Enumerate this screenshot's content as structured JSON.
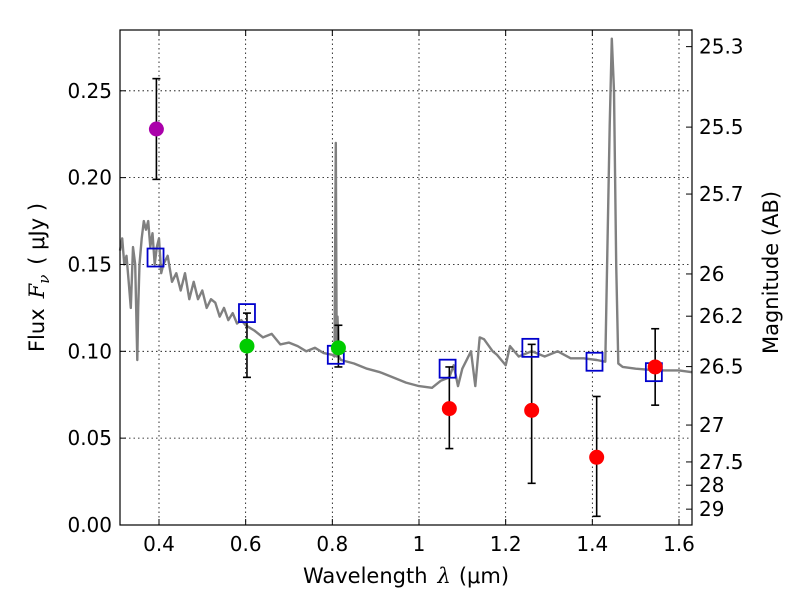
{
  "chart_data": {
    "type": "scatter",
    "xlabel": {
      "prefix": "Wavelength",
      "symbol": "λ",
      "unit": "(μm)"
    },
    "ylabel": {
      "prefix": "Flux",
      "symbol": "F",
      "subscript": "ν",
      "unit": "( μJy )"
    },
    "y2label": "Magnitude (AB)",
    "xlim": [
      0.31,
      1.63
    ],
    "ylim": [
      0.0,
      0.285
    ],
    "xticks": [
      0.4,
      0.6,
      0.8,
      1.0,
      1.2,
      1.4,
      1.6
    ],
    "xtick_labels": [
      "0.4",
      "0.6",
      "0.8",
      "1",
      "1.2",
      "1.4",
      "1.6"
    ],
    "yticks": [
      0.0,
      0.05,
      0.1,
      0.15,
      0.2,
      0.25
    ],
    "ytick_labels": [
      "0.00",
      "0.05",
      "0.10",
      "0.15",
      "0.20",
      "0.25"
    ],
    "right_axis": {
      "ticks": [
        25.3,
        25.5,
        25.7,
        26,
        26.2,
        26.5,
        27,
        27.5,
        28,
        29
      ],
      "labels": [
        "25.3",
        "25.5",
        "25.7",
        "26",
        "26.2",
        "26.5",
        "27",
        "27.5",
        "28",
        "29"
      ]
    },
    "grid": true,
    "colors": {
      "model": "#808080",
      "box": "#0000cc",
      "purple": "#aa00aa",
      "green": "#00cc00",
      "red": "#ff0000",
      "err": "#000000"
    },
    "model_spectrum": {
      "x": [
        0.31,
        0.315,
        0.32,
        0.325,
        0.33,
        0.335,
        0.34,
        0.345,
        0.35,
        0.352,
        0.355,
        0.36,
        0.365,
        0.37,
        0.375,
        0.38,
        0.385,
        0.39,
        0.395,
        0.4,
        0.405,
        0.41,
        0.42,
        0.43,
        0.44,
        0.45,
        0.46,
        0.47,
        0.48,
        0.49,
        0.5,
        0.51,
        0.52,
        0.53,
        0.54,
        0.55,
        0.56,
        0.57,
        0.58,
        0.59,
        0.6,
        0.62,
        0.64,
        0.66,
        0.68,
        0.7,
        0.72,
        0.74,
        0.76,
        0.78,
        0.8,
        0.805,
        0.808,
        0.81,
        0.812,
        0.815,
        0.82,
        0.85,
        0.88,
        0.91,
        0.94,
        0.97,
        1.0,
        1.03,
        1.05,
        1.07,
        1.08,
        1.09,
        1.1,
        1.12,
        1.13,
        1.14,
        1.15,
        1.17,
        1.18,
        1.19,
        1.2,
        1.21,
        1.23,
        1.26,
        1.29,
        1.32,
        1.35,
        1.38,
        1.41,
        1.43,
        1.44,
        1.445,
        1.45,
        1.455,
        1.46,
        1.47,
        1.5,
        1.55,
        1.6,
        1.63
      ],
      "y": [
        0.158,
        0.165,
        0.15,
        0.155,
        0.14,
        0.125,
        0.16,
        0.15,
        0.095,
        0.125,
        0.15,
        0.165,
        0.175,
        0.17,
        0.175,
        0.16,
        0.168,
        0.15,
        0.16,
        0.165,
        0.145,
        0.15,
        0.155,
        0.14,
        0.145,
        0.135,
        0.145,
        0.13,
        0.14,
        0.13,
        0.135,
        0.125,
        0.13,
        0.128,
        0.12,
        0.125,
        0.118,
        0.122,
        0.116,
        0.118,
        0.115,
        0.112,
        0.108,
        0.11,
        0.104,
        0.105,
        0.103,
        0.1,
        0.102,
        0.099,
        0.098,
        0.097,
        0.22,
        0.097,
        0.12,
        0.097,
        0.095,
        0.093,
        0.09,
        0.088,
        0.085,
        0.082,
        0.08,
        0.079,
        0.083,
        0.085,
        0.092,
        0.08,
        0.09,
        0.1,
        0.08,
        0.108,
        0.107,
        0.1,
        0.098,
        0.095,
        0.092,
        0.103,
        0.097,
        0.1,
        0.097,
        0.1,
        0.096,
        0.096,
        0.095,
        0.094,
        0.23,
        0.28,
        0.25,
        0.15,
        0.093,
        0.091,
        0.09,
        0.089,
        0.089,
        0.088
      ]
    },
    "model_boxes": [
      {
        "x": 0.392,
        "y": 0.154
      },
      {
        "x": 0.603,
        "y": 0.122
      },
      {
        "x": 0.808,
        "y": 0.098
      },
      {
        "x": 1.066,
        "y": 0.09
      },
      {
        "x": 1.257,
        "y": 0.102
      },
      {
        "x": 1.405,
        "y": 0.094
      },
      {
        "x": 1.542,
        "y": 0.088
      }
    ],
    "observed_points": [
      {
        "x": 0.394,
        "y": 0.228,
        "err_low": 0.199,
        "err_high": 0.257,
        "color": "purple"
      },
      {
        "x": 0.603,
        "y": 0.103,
        "err_low": 0.085,
        "err_high": 0.122,
        "color": "green"
      },
      {
        "x": 0.814,
        "y": 0.102,
        "err_low": 0.091,
        "err_high": 0.115,
        "color": "green"
      },
      {
        "x": 1.07,
        "y": 0.067,
        "err_low": 0.044,
        "err_high": 0.091,
        "color": "red"
      },
      {
        "x": 1.26,
        "y": 0.066,
        "err_low": 0.024,
        "err_high": 0.104,
        "color": "red"
      },
      {
        "x": 1.41,
        "y": 0.039,
        "err_low": 0.005,
        "err_high": 0.074,
        "color": "red"
      },
      {
        "x": 1.545,
        "y": 0.091,
        "err_low": 0.069,
        "err_high": 0.113,
        "color": "red"
      }
    ]
  }
}
